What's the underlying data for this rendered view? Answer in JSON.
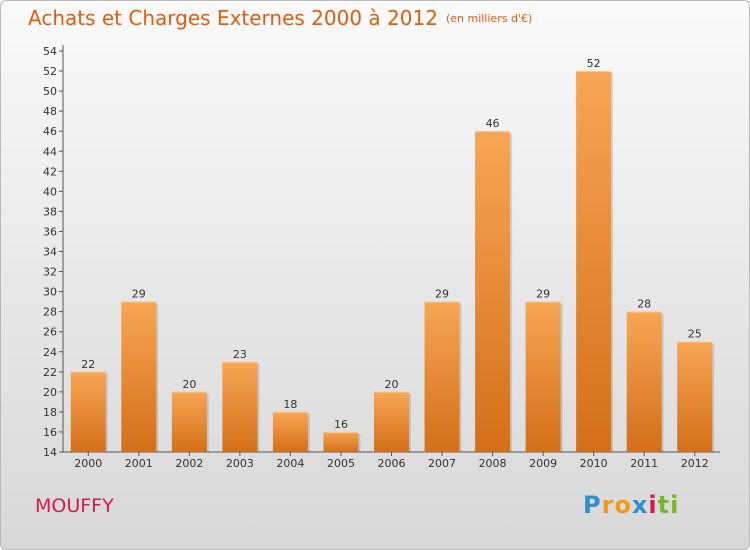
{
  "title": "Achats et Charges Externes 2000 à 2012",
  "subtitle": "(en milliers d'€)",
  "city": "MOUFFY",
  "logo": {
    "letters": [
      "P",
      "r",
      "o",
      "x",
      "i",
      "ti"
    ]
  },
  "colors": {
    "bar_top": "#f7a655",
    "bar_bottom": "#d46f19",
    "title": "#e05d10",
    "city": "#d8194f"
  },
  "chart_data": {
    "type": "bar",
    "categories": [
      "2000",
      "2001",
      "2002",
      "2003",
      "2004",
      "2005",
      "2006",
      "2007",
      "2008",
      "2009",
      "2010",
      "2011",
      "2012"
    ],
    "values": [
      22,
      29,
      20,
      23,
      18,
      16,
      20,
      29,
      46,
      29,
      52,
      28,
      25
    ],
    "ylim": [
      14,
      54
    ],
    "ytick_step": 2,
    "grid": false,
    "xlabel": "",
    "ylabel": ""
  }
}
